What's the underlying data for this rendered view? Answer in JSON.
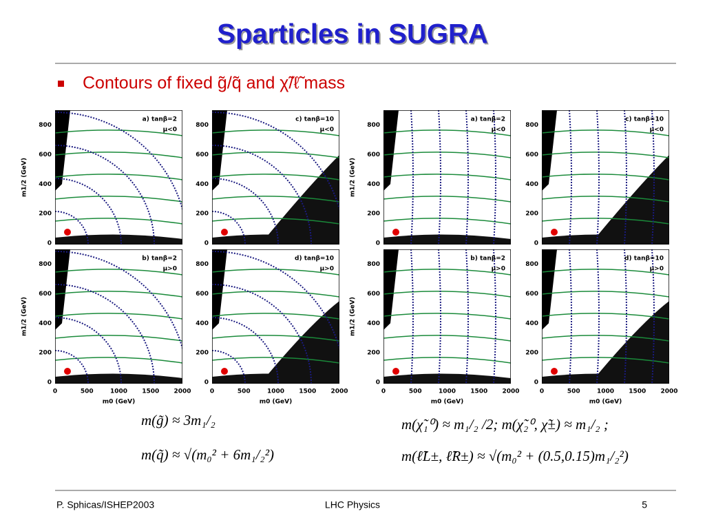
{
  "title": "Sparticles in SUGRA",
  "bullet": "Contours of fixed g̃/q̃ and χ̃/ℓ̃ mass",
  "axes": {
    "y_label": "m1/2 (GeV)",
    "x_label": "m0 (GeV)",
    "y_ticks": [
      "0",
      "200",
      "400",
      "600",
      "800"
    ],
    "x_ticks": [
      "0",
      "500",
      "1000",
      "1500",
      "2000"
    ]
  },
  "panels": [
    {
      "label": "a) tanβ=2",
      "sign": "μ<0"
    },
    {
      "label": "c) tanβ=10",
      "sign": "μ<0"
    },
    {
      "label": "a) tanβ=2",
      "sign": "μ<0"
    },
    {
      "label": "c) tanβ=10",
      "sign": "μ<0"
    },
    {
      "label": "b) tanβ=2",
      "sign": "μ>0"
    },
    {
      "label": "d) tanβ=10",
      "sign": "μ>0"
    },
    {
      "label": "b) tanβ=2",
      "sign": "μ>0"
    },
    {
      "label": "d) tanβ=10",
      "sign": "μ>0"
    }
  ],
  "formulas": {
    "left": [
      "m(g̃) ≈ 3m₁/₂",
      "m(q̃) ≈ √(m₀² + 6m₁/₂²)"
    ],
    "right": [
      "m(χ̃₁⁰) ≈ m₁/₂ /2; m(χ̃₂⁰, χ̃±) ≈ m₁/₂ ;",
      "m(ℓ̃L±, ℓ̃R±) ≈ √(m₀² + (0.5,0.15)m₁/₂²)"
    ]
  },
  "footer": {
    "left": "P. Sphicas/ISHEP2003",
    "center": "LHC Physics",
    "right": "5"
  }
}
